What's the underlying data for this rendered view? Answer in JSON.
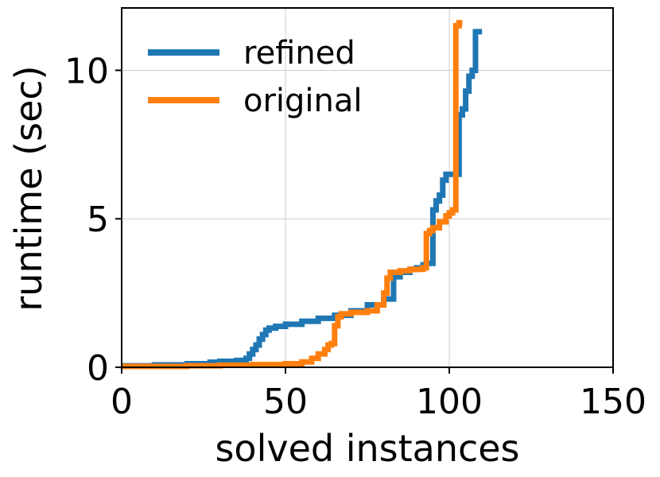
{
  "chart_data": {
    "type": "line",
    "title": "",
    "xlabel": "solved instances",
    "ylabel": "runtime (sec)",
    "xlim": [
      0,
      150
    ],
    "ylim": [
      0,
      12.1
    ],
    "xticks": [
      0,
      50,
      100,
      150
    ],
    "yticks": [
      0,
      5,
      10
    ],
    "grid": true,
    "legend_position": "top-left",
    "series": [
      {
        "name": "refined",
        "color": "#1f77b4",
        "x": [
          0,
          10,
          20,
          27,
          30,
          35,
          38,
          39,
          40,
          41,
          42,
          43,
          44,
          45,
          47,
          50,
          55,
          60,
          65,
          70,
          75,
          80,
          83,
          85,
          88,
          90,
          92,
          93,
          94,
          95,
          96,
          97,
          98,
          99,
          100,
          101,
          102,
          103,
          104,
          105,
          106,
          107,
          108,
          109,
          110
        ],
        "y": [
          0.05,
          0.08,
          0.12,
          0.17,
          0.2,
          0.23,
          0.3,
          0.45,
          0.6,
          0.75,
          0.95,
          1.1,
          1.25,
          1.32,
          1.38,
          1.45,
          1.55,
          1.65,
          1.75,
          1.9,
          2.1,
          2.3,
          3.05,
          3.2,
          3.3,
          3.35,
          3.45,
          3.5,
          3.5,
          5.3,
          5.6,
          5.8,
          6.3,
          6.5,
          6.5,
          6.5,
          6.5,
          8.5,
          8.7,
          9.3,
          9.8,
          10.0,
          11.3,
          11.3,
          11.3
        ]
      },
      {
        "name": "original",
        "color": "#ff7f0e",
        "x": [
          0,
          20,
          30,
          40,
          50,
          55,
          58,
          60,
          62,
          63,
          64,
          65,
          66,
          67,
          70,
          75,
          78,
          80,
          81,
          82,
          85,
          88,
          90,
          92,
          93,
          94,
          95,
          97,
          99,
          100,
          101,
          102,
          103,
          104
        ],
        "y": [
          0.03,
          0.05,
          0.07,
          0.09,
          0.12,
          0.18,
          0.3,
          0.45,
          0.6,
          0.75,
          0.8,
          1.4,
          1.7,
          1.8,
          1.85,
          1.9,
          2.1,
          2.5,
          3.0,
          3.2,
          3.25,
          3.3,
          3.3,
          3.35,
          4.5,
          4.6,
          4.7,
          4.9,
          5.1,
          5.2,
          5.3,
          11.5,
          11.6,
          11.6
        ]
      }
    ]
  }
}
